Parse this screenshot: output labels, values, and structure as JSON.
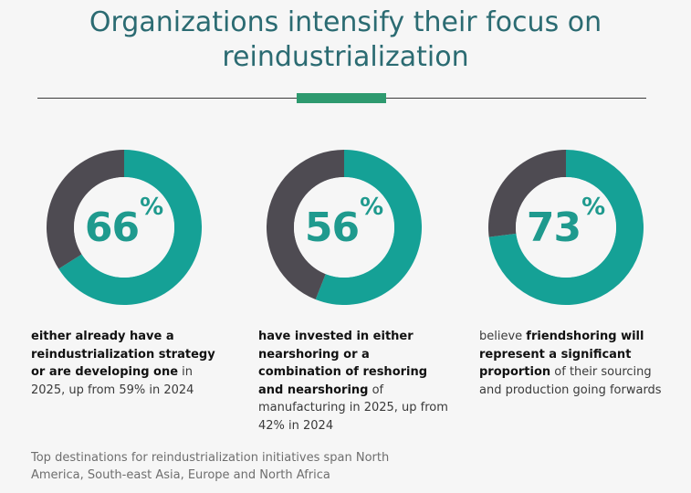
{
  "title_line1": "Organizations intensify their focus on",
  "title_line2": "reindustrialization",
  "colors": {
    "accent": "#15a196",
    "remainder": "#4e4b52",
    "title": "#2b6b72",
    "divider_accent": "#2e9a6f"
  },
  "chart_data": [
    {
      "type": "pie",
      "variant": "donut",
      "value": 66,
      "value_text": "66",
      "unit": "%",
      "description": [
        {
          "text": "either already have a reindustrialization strategy or are developing one",
          "bold": true
        },
        {
          "text": " in 2025, up from 59% in 2024",
          "bold": false
        }
      ]
    },
    {
      "type": "pie",
      "variant": "donut",
      "value": 56,
      "value_text": "56",
      "unit": "%",
      "description": [
        {
          "text": "have invested in either nearshoring or a combination of reshoring and nearshoring",
          "bold": true
        },
        {
          "text": " of manufacturing in 2025, up from 42% in 2024",
          "bold": false
        }
      ]
    },
    {
      "type": "pie",
      "variant": "donut",
      "value": 73,
      "value_text": "73",
      "unit": "%",
      "description": [
        {
          "text": "believe ",
          "bold": false
        },
        {
          "text": "friendshoring will represent a significant proportion",
          "bold": true
        },
        {
          "text": " of their sourcing and production going forwards",
          "bold": false
        }
      ]
    }
  ],
  "footnote": "Top destinations for reindustrialization initiatives span North America, South-east Asia, Europe and North Africa"
}
